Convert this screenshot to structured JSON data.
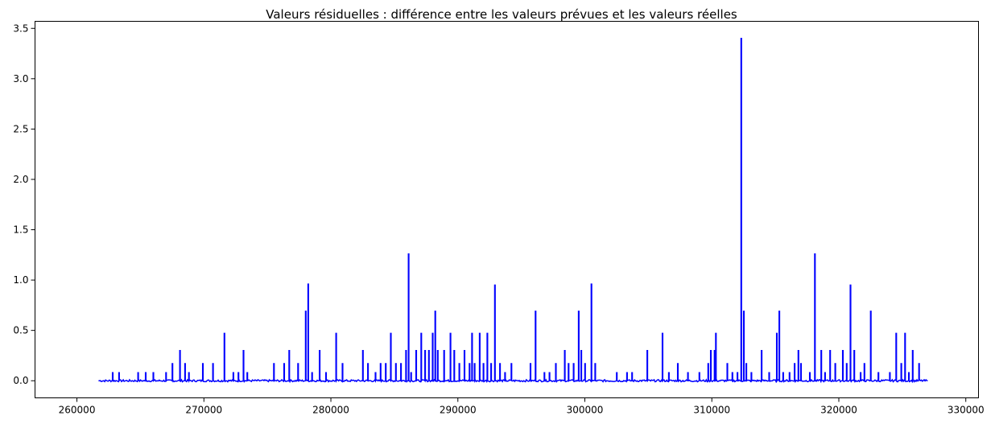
{
  "chart_data": {
    "type": "line",
    "title": "Valeurs résiduelles : différence entre les valeurs prévues et les valeurs réelles",
    "xlabel": "",
    "ylabel": "",
    "xlim": [
      256700,
      331000
    ],
    "ylim": [
      -0.17,
      3.57
    ],
    "grid": false,
    "legend": "none",
    "x_ticks": [
      {
        "value": 260000,
        "label": "260000"
      },
      {
        "value": 270000,
        "label": "270000"
      },
      {
        "value": 280000,
        "label": "280000"
      },
      {
        "value": 290000,
        "label": "290000"
      },
      {
        "value": 300000,
        "label": "300000"
      },
      {
        "value": 310000,
        "label": "310000"
      },
      {
        "value": 320000,
        "label": "320000"
      },
      {
        "value": 330000,
        "label": "330000"
      }
    ],
    "y_ticks": [
      {
        "value": 0.0,
        "label": "0.0"
      },
      {
        "value": 0.5,
        "label": "0.5"
      },
      {
        "value": 1.0,
        "label": "1.0"
      },
      {
        "value": 1.5,
        "label": "1.5"
      },
      {
        "value": 2.0,
        "label": "2.0"
      },
      {
        "value": 2.5,
        "label": "2.5"
      },
      {
        "value": 3.0,
        "label": "3.0"
      },
      {
        "value": 3.5,
        "label": "3.5"
      }
    ],
    "series": [
      {
        "color": "#0000ff",
        "x_range": [
          261700,
          327000
        ],
        "baseline": 0.0,
        "spikes": [
          [
            262800,
            0.08
          ],
          [
            263300,
            0.08
          ],
          [
            264800,
            0.08
          ],
          [
            265400,
            0.08
          ],
          [
            266000,
            0.08
          ],
          [
            267000,
            0.08
          ],
          [
            267500,
            0.17
          ],
          [
            268100,
            0.3
          ],
          [
            268500,
            0.17
          ],
          [
            268800,
            0.08
          ],
          [
            269900,
            0.17
          ],
          [
            270700,
            0.17
          ],
          [
            271600,
            0.47
          ],
          [
            272300,
            0.08
          ],
          [
            272700,
            0.08
          ],
          [
            273100,
            0.3
          ],
          [
            273400,
            0.08
          ],
          [
            275500,
            0.17
          ],
          [
            276300,
            0.17
          ],
          [
            276700,
            0.3
          ],
          [
            277400,
            0.17
          ],
          [
            278000,
            0.69
          ],
          [
            278200,
            0.96
          ],
          [
            278500,
            0.08
          ],
          [
            279100,
            0.3
          ],
          [
            279600,
            0.08
          ],
          [
            280400,
            0.47
          ],
          [
            280900,
            0.17
          ],
          [
            282500,
            0.3
          ],
          [
            282900,
            0.17
          ],
          [
            283500,
            0.08
          ],
          [
            283900,
            0.17
          ],
          [
            284300,
            0.17
          ],
          [
            284700,
            0.47
          ],
          [
            285100,
            0.17
          ],
          [
            285500,
            0.17
          ],
          [
            285900,
            0.3
          ],
          [
            286100,
            1.26
          ],
          [
            286300,
            0.08
          ],
          [
            286700,
            0.3
          ],
          [
            287100,
            0.47
          ],
          [
            287400,
            0.3
          ],
          [
            287700,
            0.3
          ],
          [
            288000,
            0.47
          ],
          [
            288200,
            0.69
          ],
          [
            288400,
            0.3
          ],
          [
            288900,
            0.3
          ],
          [
            289400,
            0.47
          ],
          [
            289700,
            0.3
          ],
          [
            290100,
            0.17
          ],
          [
            290500,
            0.3
          ],
          [
            290900,
            0.17
          ],
          [
            291100,
            0.47
          ],
          [
            291300,
            0.17
          ],
          [
            291700,
            0.47
          ],
          [
            292000,
            0.17
          ],
          [
            292300,
            0.47
          ],
          [
            292600,
            0.17
          ],
          [
            292900,
            0.95
          ],
          [
            293300,
            0.17
          ],
          [
            293700,
            0.08
          ],
          [
            294200,
            0.17
          ],
          [
            295700,
            0.17
          ],
          [
            296100,
            0.69
          ],
          [
            296800,
            0.08
          ],
          [
            297200,
            0.08
          ],
          [
            297700,
            0.17
          ],
          [
            298400,
            0.3
          ],
          [
            298700,
            0.17
          ],
          [
            299100,
            0.17
          ],
          [
            299500,
            0.69
          ],
          [
            299700,
            0.3
          ],
          [
            300000,
            0.17
          ],
          [
            300500,
            0.96
          ],
          [
            300800,
            0.17
          ],
          [
            302500,
            0.08
          ],
          [
            303300,
            0.08
          ],
          [
            303700,
            0.08
          ],
          [
            304900,
            0.3
          ],
          [
            306100,
            0.47
          ],
          [
            306600,
            0.08
          ],
          [
            307300,
            0.17
          ],
          [
            308100,
            0.08
          ],
          [
            309000,
            0.08
          ],
          [
            309700,
            0.17
          ],
          [
            309900,
            0.3
          ],
          [
            310200,
            0.3
          ],
          [
            310300,
            0.47
          ],
          [
            311200,
            0.17
          ],
          [
            311600,
            0.08
          ],
          [
            312000,
            0.08
          ],
          [
            312300,
            3.4
          ],
          [
            312500,
            0.69
          ],
          [
            312700,
            0.17
          ],
          [
            313100,
            0.08
          ],
          [
            313900,
            0.3
          ],
          [
            314500,
            0.08
          ],
          [
            315100,
            0.47
          ],
          [
            315300,
            0.69
          ],
          [
            315600,
            0.08
          ],
          [
            316100,
            0.08
          ],
          [
            316500,
            0.17
          ],
          [
            316800,
            0.3
          ],
          [
            317000,
            0.17
          ],
          [
            317700,
            0.08
          ],
          [
            318100,
            1.26
          ],
          [
            318600,
            0.3
          ],
          [
            318900,
            0.08
          ],
          [
            319300,
            0.3
          ],
          [
            319700,
            0.17
          ],
          [
            320300,
            0.3
          ],
          [
            320600,
            0.17
          ],
          [
            320900,
            0.95
          ],
          [
            321200,
            0.3
          ],
          [
            321700,
            0.08
          ],
          [
            322000,
            0.17
          ],
          [
            322500,
            0.69
          ],
          [
            323100,
            0.08
          ],
          [
            324000,
            0.08
          ],
          [
            324500,
            0.47
          ],
          [
            324900,
            0.17
          ],
          [
            325200,
            0.47
          ],
          [
            325500,
            0.08
          ],
          [
            325800,
            0.3
          ],
          [
            326300,
            0.17
          ]
        ]
      }
    ]
  }
}
